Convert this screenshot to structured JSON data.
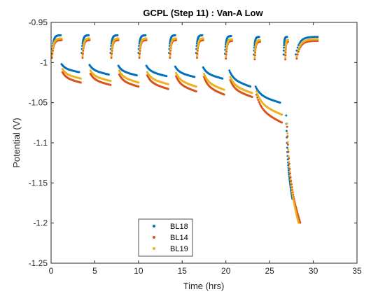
{
  "chart_data": {
    "type": "scatter",
    "title": "GCPL (Step 11) : Van-A Low",
    "xlabel": "Time (hrs)",
    "ylabel": "Potential (V)",
    "xlim": [
      0,
      35
    ],
    "ylim": [
      -1.25,
      -0.95
    ],
    "xticks": [
      0,
      5,
      10,
      15,
      20,
      25,
      30,
      35
    ],
    "yticks": [
      -1.25,
      -1.2,
      -1.15,
      -1.1,
      -1.05,
      -1,
      -0.95
    ],
    "xtick_labels": [
      "0",
      "5",
      "10",
      "15",
      "20",
      "25",
      "30",
      "35"
    ],
    "ytick_labels": [
      "-1.25",
      "-1.2",
      "-1.15",
      "-1.1",
      "-1.05",
      "-1",
      "-0.95"
    ],
    "grid": false,
    "legend_position": "bottom-left",
    "series": [
      {
        "name": "BL18",
        "color": "#0072BD",
        "rest_start": [
          0.1,
          3.5,
          6.8,
          10.0,
          13.5,
          16.6,
          19.9,
          23.2,
          26.6,
          28.0
        ],
        "rest_end": [
          1.1,
          4.3,
          7.6,
          10.8,
          14.2,
          17.3,
          20.6,
          23.8,
          27.0,
          30.5
        ],
        "rest_potential": [
          -0.966,
          -0.966,
          -0.966,
          -0.966,
          -0.966,
          -0.966,
          -0.967,
          -0.968,
          -0.968,
          -0.968
        ],
        "discharge": [
          {
            "t0": 1.2,
            "t1": 3.2,
            "v0": -1.002,
            "v1": -1.012
          },
          {
            "t0": 4.4,
            "t1": 6.6,
            "v0": -1.003,
            "v1": -1.015
          },
          {
            "t0": 7.7,
            "t1": 9.8,
            "v0": -1.004,
            "v1": -1.016
          },
          {
            "t0": 10.9,
            "t1": 13.2,
            "v0": -1.004,
            "v1": -1.017
          },
          {
            "t0": 14.2,
            "t1": 16.4,
            "v0": -1.005,
            "v1": -1.018
          },
          {
            "t0": 17.4,
            "t1": 19.6,
            "v0": -1.006,
            "v1": -1.02
          },
          {
            "t0": 20.4,
            "t1": 22.8,
            "v0": -1.01,
            "v1": -1.03
          },
          {
            "t0": 23.4,
            "t1": 26.2,
            "v0": -1.03,
            "v1": -1.05
          },
          {
            "t0": 26.9,
            "t1": 27.6,
            "v0": -1.066,
            "v1": -1.17
          }
        ]
      },
      {
        "name": "BL14",
        "color": "#D95319",
        "rest_start": [
          0.1,
          3.6,
          6.9,
          10.1,
          13.6,
          16.7,
          20.0,
          23.3,
          26.8,
          28.1
        ],
        "rest_end": [
          1.2,
          4.4,
          7.7,
          10.9,
          14.3,
          17.4,
          20.7,
          23.9,
          27.1,
          30.5
        ],
        "rest_potential": [
          -0.972,
          -0.972,
          -0.972,
          -0.972,
          -0.972,
          -0.972,
          -0.973,
          -0.974,
          -0.974,
          -0.973
        ],
        "discharge": [
          {
            "t0": 1.3,
            "t1": 3.4,
            "v0": -1.012,
            "v1": -1.025
          },
          {
            "t0": 4.5,
            "t1": 6.8,
            "v0": -1.014,
            "v1": -1.028
          },
          {
            "t0": 7.8,
            "t1": 10.0,
            "v0": -1.015,
            "v1": -1.03
          },
          {
            "t0": 11.0,
            "t1": 13.4,
            "v0": -1.016,
            "v1": -1.033
          },
          {
            "t0": 14.3,
            "t1": 16.6,
            "v0": -1.017,
            "v1": -1.036
          },
          {
            "t0": 17.5,
            "t1": 19.8,
            "v0": -1.018,
            "v1": -1.04
          },
          {
            "t0": 20.5,
            "t1": 23.0,
            "v0": -1.022,
            "v1": -1.043
          },
          {
            "t0": 23.5,
            "t1": 26.4,
            "v0": -1.04,
            "v1": -1.075
          },
          {
            "t0": 27.0,
            "t1": 28.5,
            "v0": -1.08,
            "v1": -1.2
          }
        ]
      },
      {
        "name": "BL19",
        "color": "#EDB120",
        "rest_start": [
          0.1,
          3.6,
          6.9,
          10.1,
          13.6,
          16.7,
          20.0,
          23.3,
          26.8,
          28.1
        ],
        "rest_end": [
          1.2,
          4.4,
          7.7,
          10.9,
          14.3,
          17.4,
          20.7,
          23.9,
          27.1,
          30.5
        ],
        "rest_potential": [
          -0.97,
          -0.97,
          -0.97,
          -0.97,
          -0.97,
          -0.97,
          -0.971,
          -0.972,
          -0.972,
          -0.971
        ],
        "discharge": [
          {
            "t0": 1.3,
            "t1": 3.4,
            "v0": -1.008,
            "v1": -1.02
          },
          {
            "t0": 4.5,
            "t1": 6.8,
            "v0": -1.01,
            "v1": -1.023
          },
          {
            "t0": 7.8,
            "t1": 10.0,
            "v0": -1.01,
            "v1": -1.025
          },
          {
            "t0": 11.0,
            "t1": 13.4,
            "v0": -1.012,
            "v1": -1.027
          },
          {
            "t0": 14.3,
            "t1": 16.6,
            "v0": -1.013,
            "v1": -1.03
          },
          {
            "t0": 17.5,
            "t1": 19.8,
            "v0": -1.014,
            "v1": -1.034
          },
          {
            "t0": 20.5,
            "t1": 23.0,
            "v0": -1.018,
            "v1": -1.038
          },
          {
            "t0": 23.5,
            "t1": 26.4,
            "v0": -1.036,
            "v1": -1.065
          },
          {
            "t0": 27.0,
            "t1": 28.3,
            "v0": -1.076,
            "v1": -1.2
          }
        ]
      }
    ]
  }
}
